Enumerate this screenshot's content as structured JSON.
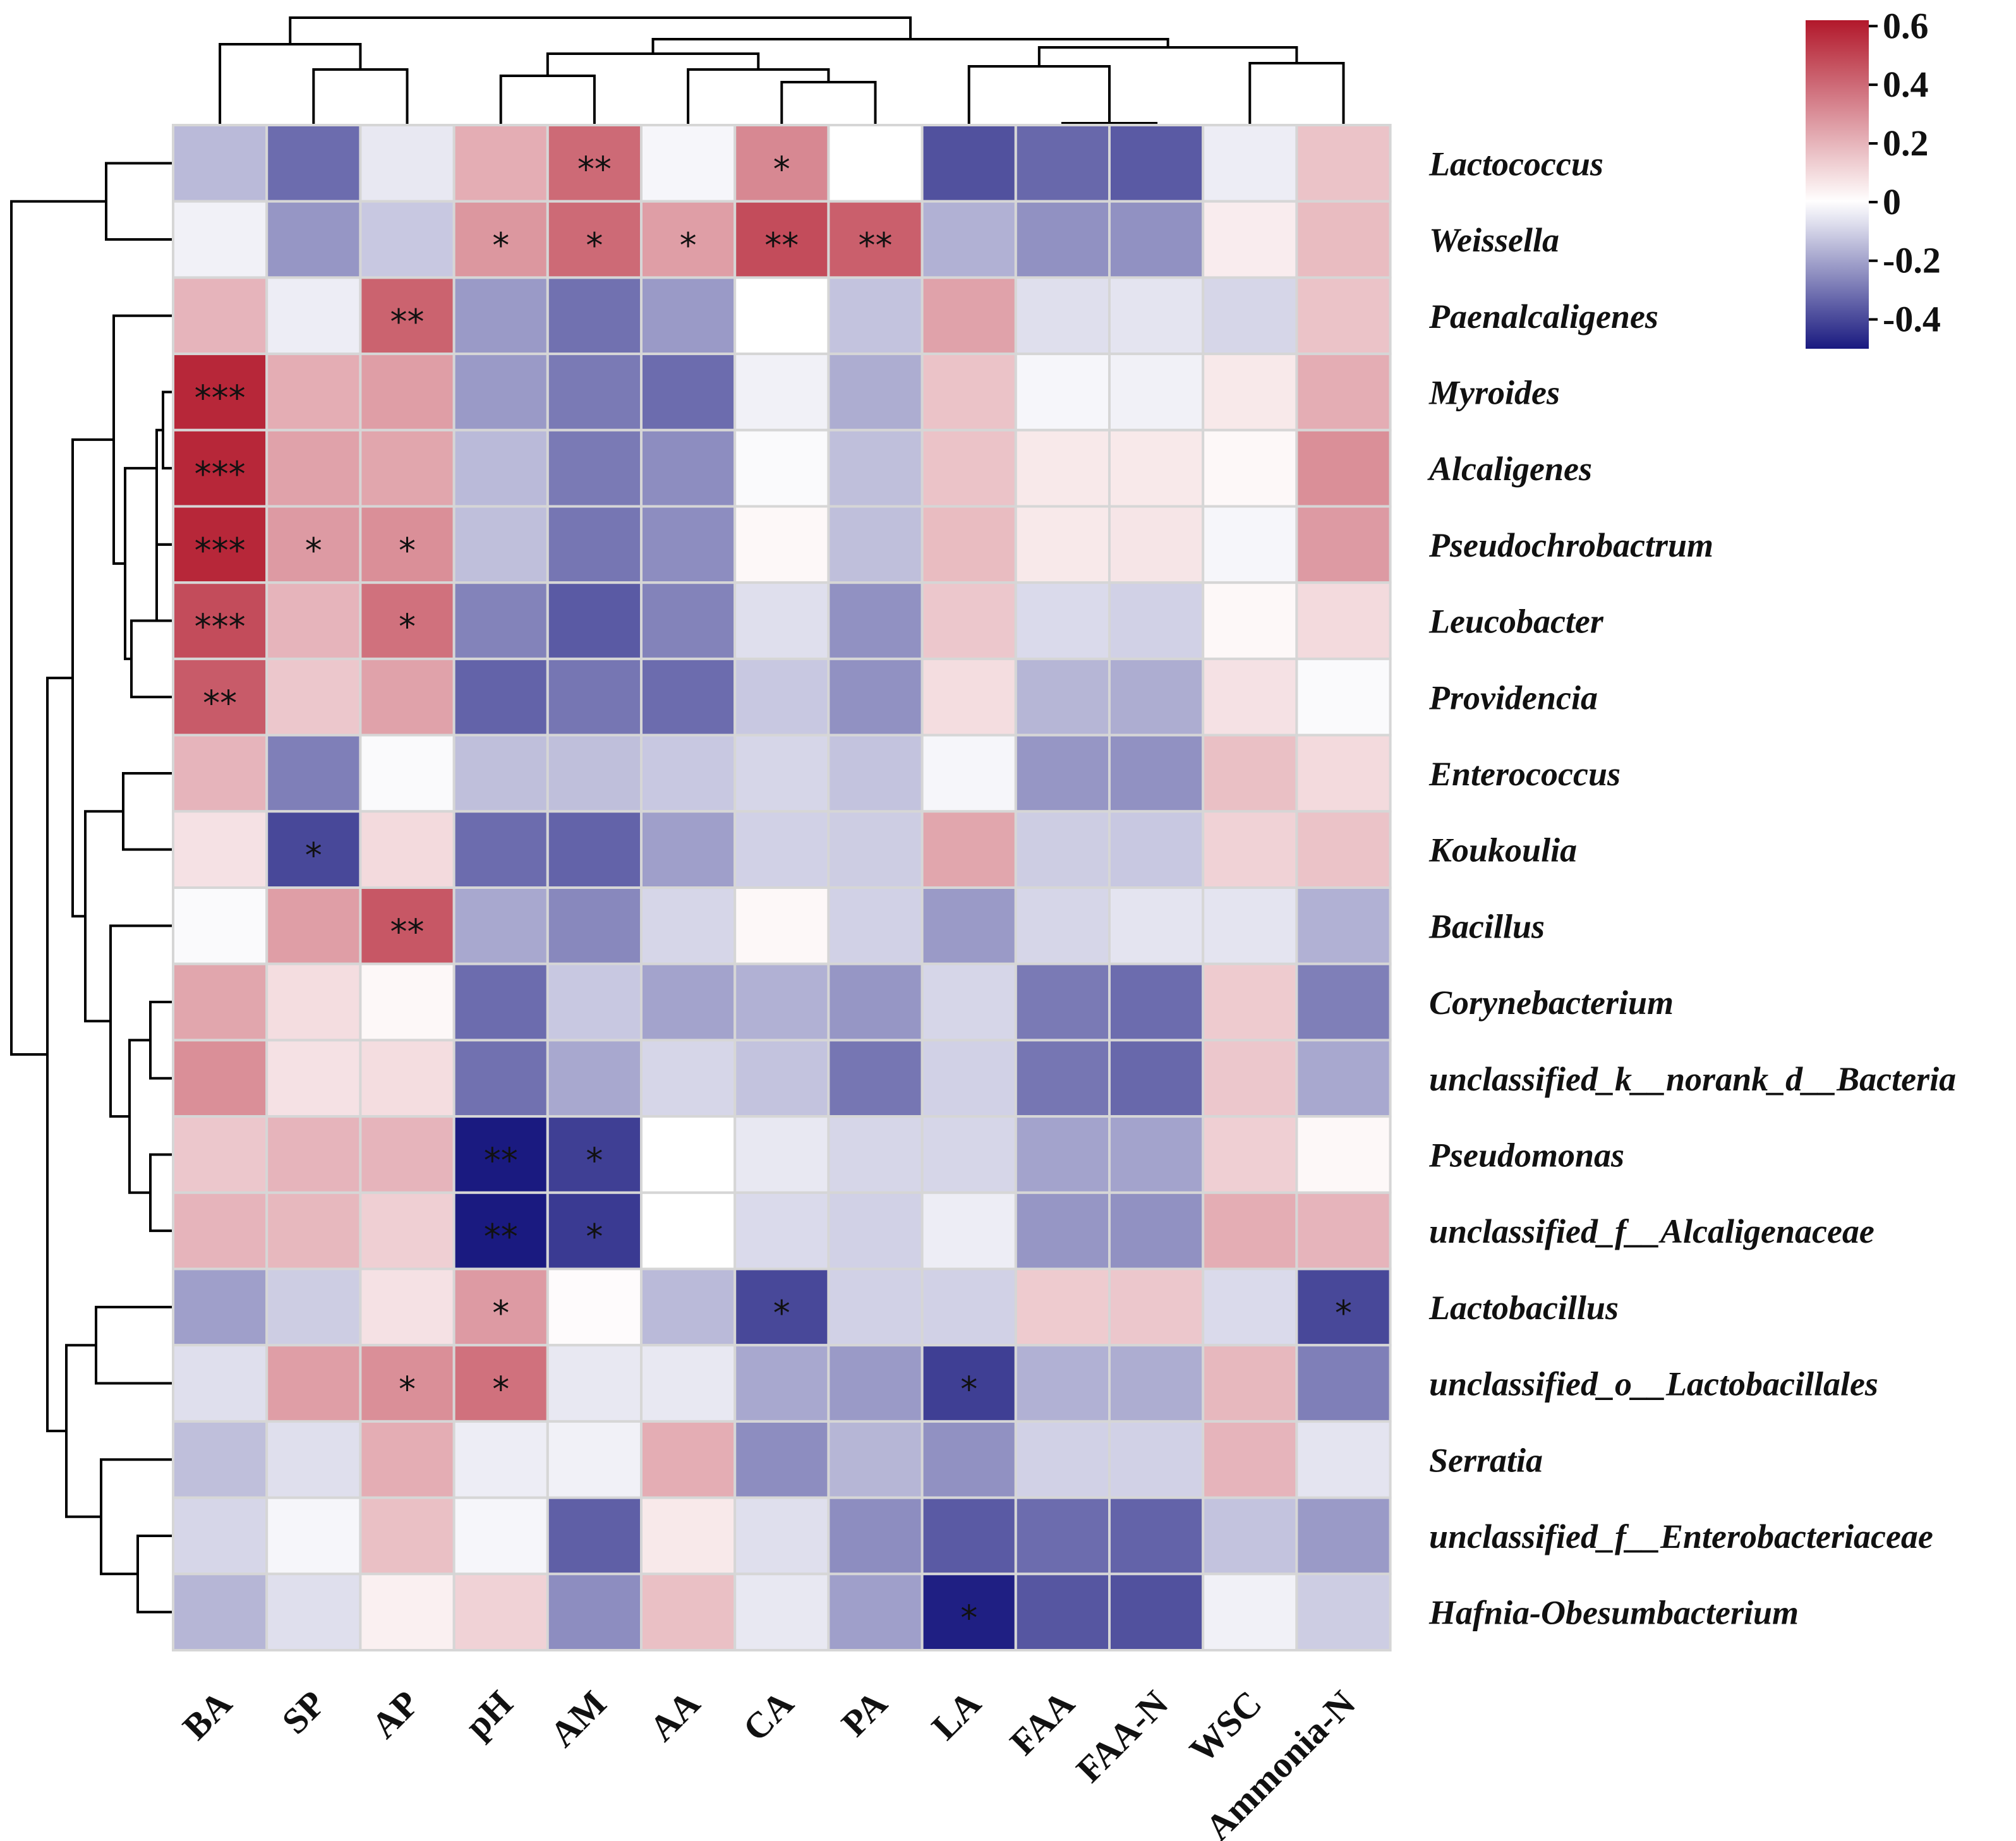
{
  "chart_data": {
    "type": "heatmap",
    "title": "",
    "xlabel": "",
    "ylabel": "",
    "columns": [
      "BA",
      "SP",
      "AP",
      "pH",
      "AM",
      "AA",
      "CA",
      "PA",
      "LA",
      "FAA",
      "FAA-N",
      "WSC",
      "Ammonia-N"
    ],
    "rows": [
      "Lactococcus",
      "Weissella",
      "Paenalcaligenes",
      "Myroides",
      "Alcaligenes",
      "Pseudochrobactrum",
      "Leucobacter",
      "Providencia",
      "Enterococcus",
      "Koukoulia",
      "Bacillus",
      "Corynebacterium",
      "unclassified_k__norank_d__Bacteria",
      "Pseudomonas",
      "unclassified_f__Alcaligenaceae",
      "Lactobacillus",
      "unclassified_o__Lactobacillales",
      "Serratia",
      "unclassified_f__Enterobacteriaceae",
      "Hafnia-Obesumbacterium"
    ],
    "values": [
      [
        -0.15,
        -0.32,
        -0.05,
        0.22,
        0.4,
        -0.02,
        0.32,
        0.0,
        -0.38,
        -0.33,
        -0.36,
        -0.04,
        0.16
      ],
      [
        -0.03,
        -0.23,
        -0.12,
        0.28,
        0.4,
        0.26,
        0.48,
        0.43,
        -0.17,
        -0.24,
        -0.24,
        0.05,
        0.18
      ],
      [
        0.2,
        -0.04,
        0.42,
        -0.22,
        -0.31,
        -0.22,
        0.0,
        -0.13,
        0.25,
        -0.07,
        -0.06,
        -0.09,
        0.16
      ],
      [
        0.58,
        0.22,
        0.26,
        -0.22,
        -0.29,
        -0.32,
        -0.03,
        -0.18,
        0.16,
        -0.02,
        -0.03,
        0.06,
        0.22
      ],
      [
        0.58,
        0.25,
        0.24,
        -0.15,
        -0.29,
        -0.25,
        -0.01,
        -0.14,
        0.16,
        0.06,
        0.06,
        0.02,
        0.3
      ],
      [
        0.58,
        0.27,
        0.3,
        -0.14,
        -0.3,
        -0.25,
        0.02,
        -0.14,
        0.18,
        0.06,
        0.07,
        -0.02,
        0.27
      ],
      [
        0.48,
        0.2,
        0.38,
        -0.27,
        -0.36,
        -0.27,
        -0.07,
        -0.24,
        0.15,
        -0.08,
        -0.1,
        0.02,
        0.1
      ],
      [
        0.44,
        0.15,
        0.25,
        -0.34,
        -0.3,
        -0.32,
        -0.12,
        -0.24,
        0.09,
        -0.16,
        -0.18,
        0.08,
        -0.01
      ],
      [
        0.2,
        -0.28,
        -0.01,
        -0.14,
        -0.14,
        -0.12,
        -0.09,
        -0.13,
        -0.02,
        -0.23,
        -0.24,
        0.17,
        0.1
      ],
      [
        0.08,
        -0.4,
        0.1,
        -0.32,
        -0.34,
        -0.21,
        -0.1,
        -0.11,
        0.24,
        -0.11,
        -0.12,
        0.12,
        0.16
      ],
      [
        -0.01,
        0.26,
        0.45,
        -0.19,
        -0.26,
        -0.09,
        0.02,
        -0.1,
        -0.22,
        -0.09,
        -0.06,
        -0.06,
        -0.17
      ],
      [
        0.24,
        0.09,
        0.02,
        -0.32,
        -0.12,
        -0.2,
        -0.17,
        -0.23,
        -0.09,
        -0.29,
        -0.32,
        0.14,
        -0.28
      ],
      [
        0.3,
        0.08,
        0.09,
        -0.31,
        -0.19,
        -0.09,
        -0.13,
        -0.3,
        -0.1,
        -0.3,
        -0.33,
        0.15,
        -0.19
      ],
      [
        0.15,
        0.2,
        0.2,
        -0.5,
        -0.42,
        0.0,
        -0.05,
        -0.09,
        -0.09,
        -0.2,
        -0.2,
        0.13,
        0.02
      ],
      [
        0.2,
        0.19,
        0.13,
        -0.5,
        -0.43,
        0.0,
        -0.08,
        -0.1,
        -0.04,
        -0.23,
        -0.24,
        0.22,
        0.2
      ],
      [
        -0.21,
        -0.11,
        0.08,
        0.27,
        0.01,
        -0.15,
        -0.4,
        -0.1,
        -0.1,
        0.14,
        0.15,
        -0.08,
        -0.4
      ],
      [
        -0.07,
        0.26,
        0.3,
        0.38,
        -0.05,
        -0.05,
        -0.19,
        -0.22,
        -0.42,
        -0.17,
        -0.18,
        0.19,
        -0.28
      ],
      [
        -0.14,
        -0.07,
        0.22,
        -0.04,
        -0.03,
        0.22,
        -0.25,
        -0.16,
        -0.24,
        -0.1,
        -0.1,
        0.2,
        -0.06
      ],
      [
        -0.09,
        -0.02,
        0.17,
        -0.02,
        -0.35,
        0.06,
        -0.07,
        -0.25,
        -0.36,
        -0.32,
        -0.34,
        -0.13,
        -0.22
      ],
      [
        -0.16,
        -0.07,
        0.04,
        0.12,
        -0.25,
        0.17,
        -0.05,
        -0.21,
        -0.49,
        -0.37,
        -0.38,
        -0.03,
        -0.11
      ]
    ],
    "significance": [
      [
        "",
        "",
        "",
        "",
        "**",
        "",
        "*",
        "",
        "",
        "",
        "",
        "",
        ""
      ],
      [
        "",
        "",
        "",
        "*",
        "*",
        "*",
        "**",
        "**",
        "",
        "",
        "",
        "",
        ""
      ],
      [
        "",
        "",
        "**",
        "",
        "",
        "",
        "",
        "",
        "",
        "",
        "",
        "",
        ""
      ],
      [
        "***",
        "",
        "",
        "",
        "",
        "",
        "",
        "",
        "",
        "",
        "",
        "",
        ""
      ],
      [
        "***",
        "",
        "",
        "",
        "",
        "",
        "",
        "",
        "",
        "",
        "",
        "",
        ""
      ],
      [
        "***",
        "*",
        "*",
        "",
        "",
        "",
        "",
        "",
        "",
        "",
        "",
        "",
        ""
      ],
      [
        "***",
        "",
        "*",
        "",
        "",
        "",
        "",
        "",
        "",
        "",
        "",
        "",
        ""
      ],
      [
        "**",
        "",
        "",
        "",
        "",
        "",
        "",
        "",
        "",
        "",
        "",
        "",
        ""
      ],
      [
        "",
        "",
        "",
        "",
        "",
        "",
        "",
        "",
        "",
        "",
        "",
        "",
        ""
      ],
      [
        "",
        "*",
        "",
        "",
        "",
        "",
        "",
        "",
        "",
        "",
        "",
        "",
        ""
      ],
      [
        "",
        "",
        "**",
        "",
        "",
        "",
        "",
        "",
        "",
        "",
        "",
        "",
        ""
      ],
      [
        "",
        "",
        "",
        "",
        "",
        "",
        "",
        "",
        "",
        "",
        "",
        "",
        ""
      ],
      [
        "",
        "",
        "",
        "",
        "",
        "",
        "",
        "",
        "",
        "",
        "",
        "",
        ""
      ],
      [
        "",
        "",
        "",
        "**",
        "*",
        "",
        "",
        "",
        "",
        "",
        "",
        "",
        ""
      ],
      [
        "",
        "",
        "",
        "**",
        "*",
        "",
        "",
        "",
        "",
        "",
        "",
        "",
        ""
      ],
      [
        "",
        "",
        "",
        "*",
        "",
        "",
        "*",
        "",
        "",
        "",
        "",
        "",
        "*"
      ],
      [
        "",
        "",
        "*",
        "*",
        "",
        "",
        "",
        "",
        "*",
        "",
        "",
        "",
        ""
      ],
      [
        "",
        "",
        "",
        "",
        "",
        "",
        "",
        "",
        "",
        "",
        "",
        "",
        ""
      ],
      [
        "",
        "",
        "",
        "",
        "",
        "",
        "",
        "",
        "",
        "",
        "",
        "",
        ""
      ],
      [
        "",
        "",
        "",
        "",
        "",
        "",
        "",
        "",
        "*",
        "",
        "",
        "",
        ""
      ]
    ],
    "colorbar": {
      "range": [
        -0.5,
        0.62
      ],
      "ticks": [
        0.6,
        0.4,
        0.2,
        0,
        -0.2,
        -0.4
      ],
      "tick_labels": [
        "0.6",
        "0.4",
        "0.2",
        "0",
        "-0.2",
        "-0.4"
      ],
      "colors": {
        "neg": "#1a1a80",
        "mid": "#ffffff",
        "pos": "#b2182b"
      }
    },
    "legend": "top-right"
  }
}
